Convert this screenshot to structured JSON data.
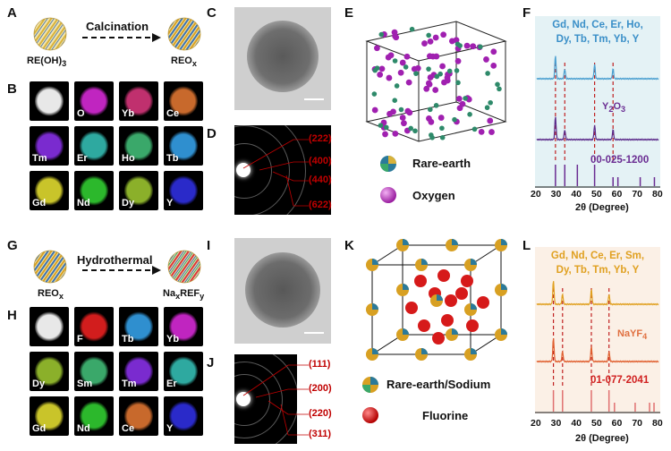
{
  "panels": {
    "A": "A",
    "B": "B",
    "C": "C",
    "D": "D",
    "E": "E",
    "F": "F",
    "G": "G",
    "H": "H",
    "I": "I",
    "J": "J",
    "K": "K",
    "L": "L"
  },
  "top": {
    "process_label": "Calcination",
    "precursor": "RE(OH)",
    "precursor_sub": "3",
    "product": "REO",
    "product_sub": "x",
    "mapping": [
      {
        "label": "",
        "color": "#e8e8e8"
      },
      {
        "label": "O",
        "color": "#c025c0"
      },
      {
        "label": "Yb",
        "color": "#c0306e"
      },
      {
        "label": "Ce",
        "color": "#c8692c"
      },
      {
        "label": "Tm",
        "color": "#7a2bcf"
      },
      {
        "label": "Er",
        "color": "#2ea9a0"
      },
      {
        "label": "Ho",
        "color": "#3aa86a"
      },
      {
        "label": "Tb",
        "color": "#2f8fcf"
      },
      {
        "label": "Gd",
        "color": "#c9c42a"
      },
      {
        "label": "Nd",
        "color": "#2cb82c"
      },
      {
        "label": "Dy",
        "color": "#8bb02a"
      },
      {
        "label": "Y",
        "color": "#2a2ac9"
      }
    ],
    "saed_hkl": [
      "(222)",
      "(400)",
      "(440)",
      "(622)"
    ],
    "legend": {
      "item1": "Rare-earth",
      "item2": "Oxygen"
    },
    "xrd": {
      "elements_line1": "Gd, Nd, Ce, Er, Ho,",
      "elements_line2": "Dy, Tb, Tm, Yb, Y",
      "ref_name": "Y",
      "ref_sub1": "2",
      "ref_mid": "O",
      "ref_sub2": "3",
      "pdf": "00-025-1200",
      "xlabel": "2θ (Degree)",
      "ticks": [
        "20",
        "30",
        "40",
        "50",
        "60",
        "70",
        "80"
      ]
    }
  },
  "bottom": {
    "process_label": "Hydrothermal",
    "precursor": "REO",
    "precursor_sub": "x",
    "product": "Na",
    "product_sub1": "x",
    "product_mid": "REF",
    "product_sub2": "y",
    "mapping": [
      {
        "label": "",
        "color": "#e8e8e8"
      },
      {
        "label": "F",
        "color": "#d21d1d"
      },
      {
        "label": "Tb",
        "color": "#2f8fcf"
      },
      {
        "label": "Yb",
        "color": "#c025c0"
      },
      {
        "label": "Dy",
        "color": "#8bb02a"
      },
      {
        "label": "Sm",
        "color": "#3aa86a"
      },
      {
        "label": "Tm",
        "color": "#7a2bcf"
      },
      {
        "label": "Er",
        "color": "#2ea9a0"
      },
      {
        "label": "Gd",
        "color": "#c9c42a"
      },
      {
        "label": "Nd",
        "color": "#2cb82c"
      },
      {
        "label": "Ce",
        "color": "#c8692c"
      },
      {
        "label": "Y",
        "color": "#2a2ac9"
      }
    ],
    "saed_hkl": [
      "(111)",
      "(200)",
      "(220)",
      "(311)"
    ],
    "legend": {
      "item1": "Rare-earth/Sodium",
      "item2": "Fluorine"
    },
    "xrd": {
      "elements_line1": "Gd, Nd, Ce, Er, Sm,",
      "elements_line2": "Dy, Tb, Tm, Yb, Y",
      "ref_name": "NaYF",
      "ref_sub1": "4",
      "pdf": "01-077-2041",
      "xlabel": "2θ (Degree)",
      "ticks": [
        "20",
        "30",
        "40",
        "50",
        "60",
        "70",
        "80"
      ]
    }
  },
  "chart_data": [
    {
      "type": "line",
      "title": "",
      "xlabel": "2θ (Degree)",
      "ylabel": "",
      "xlim": [
        20,
        80
      ],
      "series": [
        {
          "name": "Gd, Nd, Ce, Er, Ho, Dy, Tb, Tm, Yb, Y",
          "peaks_2theta": [
            29.2,
            33.8,
            48.5,
            57.6
          ]
        },
        {
          "name": "Y2O3",
          "peaks_2theta": [
            29.2,
            33.8,
            48.5,
            57.6
          ]
        }
      ],
      "reference_lines_2theta": [
        29.2,
        33.8,
        40.0,
        48.5,
        57.6,
        60.0,
        71.0,
        78.0
      ]
    },
    {
      "type": "line",
      "title": "",
      "xlabel": "2θ (Degree)",
      "ylabel": "",
      "xlim": [
        20,
        80
      ],
      "series": [
        {
          "name": "Gd, Nd, Ce, Er, Sm, Dy, Tb, Tm, Yb, Y",
          "peaks_2theta": [
            28.2,
            32.7,
            46.9,
            55.6
          ]
        },
        {
          "name": "NaYF4",
          "peaks_2theta": [
            28.2,
            32.7,
            46.9,
            55.6
          ]
        }
      ],
      "reference_lines_2theta": [
        28.2,
        32.7,
        46.9,
        55.6,
        58.3,
        68.5,
        75.6,
        77.8
      ]
    }
  ]
}
